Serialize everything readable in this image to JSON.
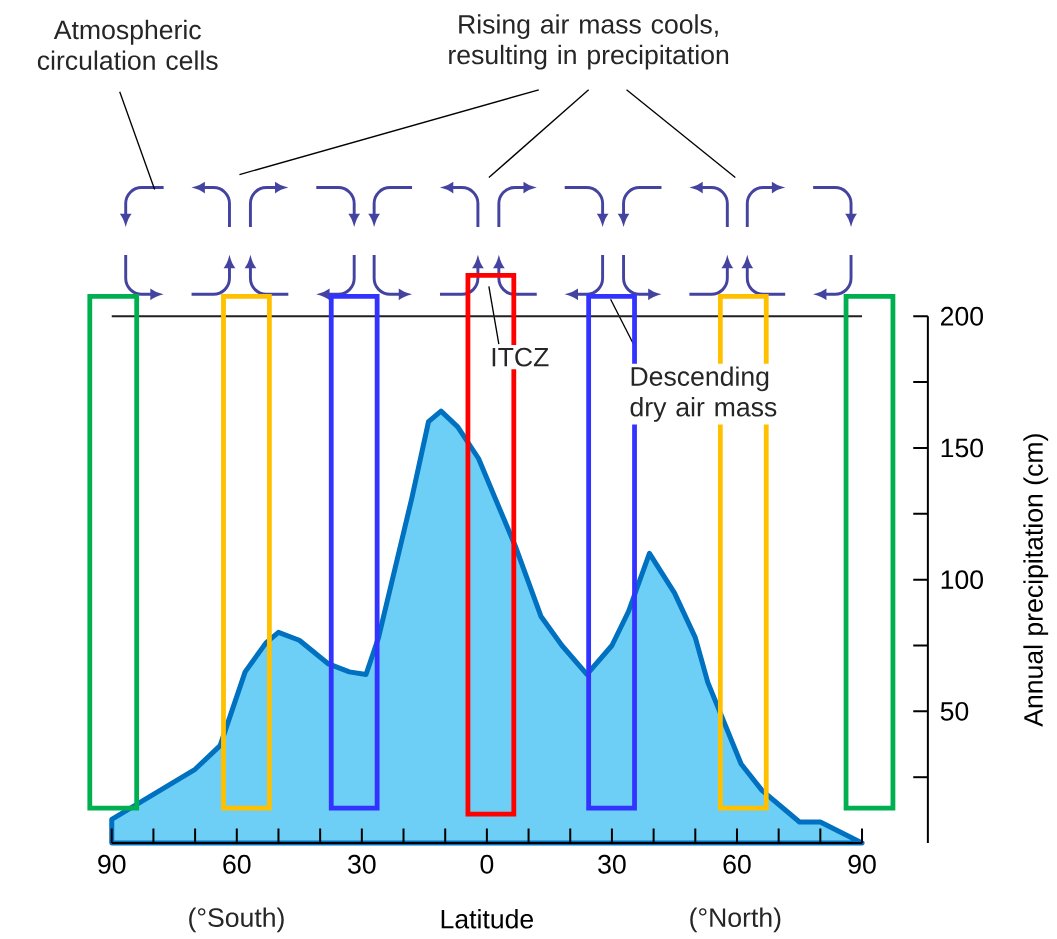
{
  "chart_data": {
    "type": "area",
    "xlabel": "Latitude",
    "ylabel": "Annual precipitation (cm)",
    "x": [
      -90,
      -70,
      -64,
      -58,
      -53,
      -50,
      -45,
      -38,
      -33,
      -29,
      -26,
      -18,
      -14,
      -11,
      -7,
      -2,
      7,
      13,
      18,
      24,
      30,
      34,
      39,
      45,
      50,
      53,
      61,
      66,
      75,
      80,
      90
    ],
    "values": [
      9,
      28,
      37,
      65,
      76,
      80,
      77,
      68,
      65,
      64,
      78,
      131,
      160,
      164,
      158,
      146,
      112,
      86,
      75,
      64,
      75,
      88,
      110,
      95,
      78,
      61,
      30,
      20,
      8,
      8,
      0
    ],
    "color": "#6dcff6",
    "xlim": [
      -90,
      90
    ],
    "ylim": [
      0,
      200
    ],
    "xticks": [
      {
        "value": -90,
        "label": "90"
      },
      {
        "value": -80,
        "label": null
      },
      {
        "value": -70,
        "label": null
      },
      {
        "value": -60,
        "label": "60"
      },
      {
        "value": -50,
        "label": null
      },
      {
        "value": -40,
        "label": null
      },
      {
        "value": -30,
        "label": "30"
      },
      {
        "value": -20,
        "label": null
      },
      {
        "value": -10,
        "label": null
      },
      0,
      {
        "value": 10,
        "label": null
      },
      {
        "value": 20,
        "label": null
      },
      {
        "value": 30,
        "label": "30"
      },
      {
        "value": 40,
        "label": null
      },
      {
        "value": 50,
        "label": null
      },
      {
        "value": 60,
        "label": "60"
      },
      {
        "value": 70,
        "label": null
      },
      {
        "value": 80,
        "label": null
      },
      {
        "value": 90,
        "label": "90"
      }
    ],
    "yticks": [
      50,
      100,
      150,
      200
    ],
    "ref_lines": [
      {
        "axis": "y",
        "value": 200,
        "color": "#231f20"
      }
    ],
    "annotations": [
      "Atmospheric circulation cells",
      "Rising air mass cools, resulting in precipitation",
      "ITCZ",
      "Descending dry air mass",
      "(°South)",
      "(°North)"
    ]
  }
}
